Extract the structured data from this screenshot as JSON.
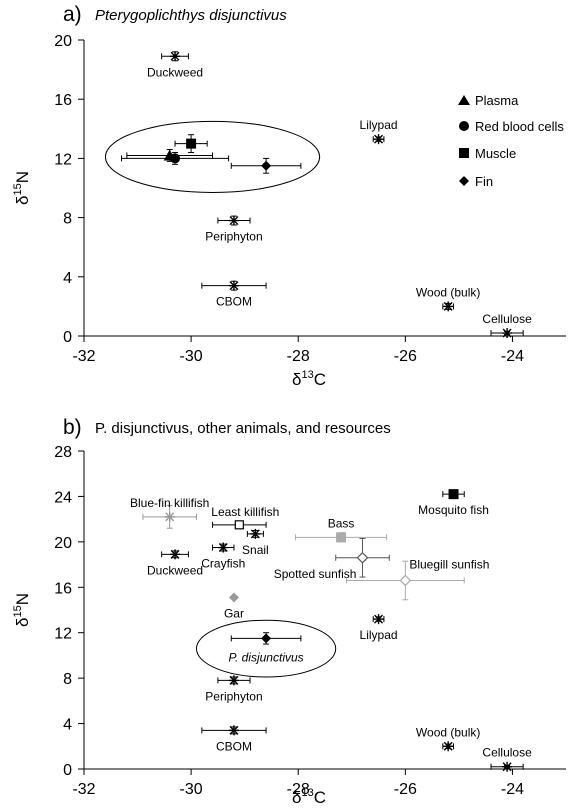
{
  "chart_data": [
    {
      "type": "scatter",
      "panel_letter": "a)",
      "title": "Pterygoplichthys disjunctivus",
      "xlabel": "δ13C",
      "ylabel": "δ15N",
      "xlim": [
        -32,
        -23
      ],
      "ylim": [
        0,
        20
      ],
      "xticks": [
        -32,
        -30,
        -28,
        -26,
        -24
      ],
      "yticks": [
        0,
        4,
        8,
        12,
        16,
        20
      ],
      "legend": {
        "position": "right",
        "entries": [
          {
            "label": "Plasma",
            "marker": "triangle"
          },
          {
            "label": "Red blood cells",
            "marker": "circle"
          },
          {
            "label": "Muscle",
            "marker": "square"
          },
          {
            "label": "Fin",
            "marker": "diamond"
          }
        ]
      },
      "points": [
        {
          "label": "Duckweed",
          "x": -30.3,
          "y": 18.9,
          "xerr": 0.25,
          "yerr": 0.3,
          "marker": "asterisk",
          "color": "#000000",
          "label_pos": "below"
        },
        {
          "label": "Lilypad",
          "x": -26.5,
          "y": 13.3,
          "xerr": 0.1,
          "yerr": 0.15,
          "marker": "asterisk",
          "color": "#000000",
          "label_pos": "above"
        },
        {
          "label": "Periphyton",
          "x": -29.2,
          "y": 7.8,
          "xerr": 0.3,
          "yerr": 0.3,
          "marker": "asterisk",
          "color": "#000000",
          "label_pos": "below"
        },
        {
          "label": "CBOM",
          "x": -29.2,
          "y": 3.4,
          "xerr": 0.6,
          "yerr": 0.3,
          "marker": "asterisk",
          "color": "#000000",
          "label_pos": "below"
        },
        {
          "label": "Wood (bulk)",
          "x": -25.2,
          "y": 2.0,
          "xerr": 0.1,
          "yerr": 0.2,
          "marker": "asterisk",
          "color": "#000000",
          "label_pos": "above"
        },
        {
          "label": "Cellulose",
          "x": -24.1,
          "y": 0.2,
          "xerr": 0.3,
          "yerr": 0.1,
          "marker": "asterisk",
          "color": "#000000",
          "label_pos": "above"
        },
        {
          "label": "",
          "x": -30.4,
          "y": 12.2,
          "xerr": 0.8,
          "yerr": 0.4,
          "marker": "triangle",
          "color": "#000000"
        },
        {
          "label": "",
          "x": -30.3,
          "y": 12.0,
          "xerr": 1.0,
          "yerr": 0.4,
          "marker": "circle",
          "color": "#000000"
        },
        {
          "label": "",
          "x": -30.0,
          "y": 13.0,
          "xerr": 0.3,
          "yerr": 0.6,
          "marker": "square",
          "color": "#000000"
        },
        {
          "label": "",
          "x": -28.6,
          "y": 11.5,
          "xerr": 0.65,
          "yerr": 0.5,
          "marker": "diamond",
          "color": "#000000"
        }
      ],
      "ellipse": {
        "cx": -29.6,
        "cy": 12.1,
        "rx": 2.0,
        "ry": 2.4
      }
    },
    {
      "type": "scatter",
      "panel_letter": "b)",
      "title": "P. disjunctivus, other animals, and resources",
      "xlabel": "δ13C",
      "ylabel": "δ15N",
      "xlim": [
        -32,
        -23
      ],
      "ylim": [
        0,
        28
      ],
      "xticks": [
        -32,
        -30,
        -28,
        -26,
        -24
      ],
      "yticks": [
        0,
        4,
        8,
        12,
        16,
        20,
        24,
        28
      ],
      "points": [
        {
          "label": "Blue-fin killifish",
          "x": -30.4,
          "y": 22.2,
          "xerr": 0.5,
          "yerr": 1.0,
          "marker": "asterisk",
          "color": "#999999",
          "label_pos": "above"
        },
        {
          "label": "Least killifish",
          "x": -29.1,
          "y": 21.5,
          "xerr": 0.5,
          "yerr": 0.3,
          "marker": "square-open",
          "color": "#000000",
          "label_pos": "above-right"
        },
        {
          "label": "Snail",
          "x": -28.8,
          "y": 20.7,
          "xerr": 0.15,
          "yerr": 0.3,
          "marker": "asterisk",
          "color": "#000000",
          "label_pos": "below"
        },
        {
          "label": "Crayfish",
          "x": -29.4,
          "y": 19.5,
          "xerr": 0.2,
          "yerr": 0.3,
          "marker": "asterisk",
          "color": "#000000",
          "label_pos": "below"
        },
        {
          "label": "Duckweed",
          "x": -30.3,
          "y": 18.9,
          "xerr": 0.25,
          "yerr": 0.3,
          "marker": "asterisk",
          "color": "#000000",
          "label_pos": "below"
        },
        {
          "label": "Bass",
          "x": -27.2,
          "y": 20.4,
          "xerr": 0.85,
          "yerr": 0.4,
          "marker": "square",
          "color": "#aaaaaa",
          "label_pos": "above"
        },
        {
          "label": "Mosquito fish",
          "x": -25.1,
          "y": 24.2,
          "xerr": 0.2,
          "yerr": 0.3,
          "marker": "square",
          "color": "#000000",
          "label_pos": "below"
        },
        {
          "label": "Spotted sunfish",
          "x": -26.8,
          "y": 18.6,
          "xerr": 0.5,
          "yerr": 1.7,
          "marker": "diamond-open",
          "color": "#555555",
          "label_pos": "left"
        },
        {
          "label": "Bluegill sunfish",
          "x": -26.0,
          "y": 16.6,
          "xerr": 1.1,
          "yerr": 1.7,
          "marker": "diamond-open",
          "color": "#aaaaaa",
          "label_pos": "right"
        },
        {
          "label": "Gar",
          "x": -29.2,
          "y": 15.1,
          "xerr": 0,
          "yerr": 0,
          "marker": "diamond",
          "color": "#999999",
          "label_pos": "below"
        },
        {
          "label": "Lilypad",
          "x": -26.5,
          "y": 13.2,
          "xerr": 0.1,
          "yerr": 0.2,
          "marker": "asterisk",
          "color": "#000000",
          "label_pos": "below"
        },
        {
          "label": "",
          "x": -28.6,
          "y": 11.5,
          "xerr": 0.65,
          "yerr": 0.5,
          "marker": "diamond",
          "color": "#000000"
        },
        {
          "label": "Periphyton",
          "x": -29.2,
          "y": 7.8,
          "xerr": 0.3,
          "yerr": 0.3,
          "marker": "asterisk",
          "color": "#000000",
          "label_pos": "below"
        },
        {
          "label": "CBOM",
          "x": -29.2,
          "y": 3.4,
          "xerr": 0.6,
          "yerr": 0.3,
          "marker": "asterisk",
          "color": "#000000",
          "label_pos": "below"
        },
        {
          "label": "Wood (bulk)",
          "x": -25.2,
          "y": 2.0,
          "xerr": 0.1,
          "yerr": 0.2,
          "marker": "asterisk",
          "color": "#000000",
          "label_pos": "above"
        },
        {
          "label": "Cellulose",
          "x": -24.1,
          "y": 0.2,
          "xerr": 0.3,
          "yerr": 0.1,
          "marker": "asterisk",
          "color": "#000000",
          "label_pos": "above"
        }
      ],
      "ellipse": {
        "cx": -28.6,
        "cy": 10.6,
        "rx": 1.3,
        "ry": 2.5,
        "label": "P. disjunctivus"
      }
    }
  ]
}
